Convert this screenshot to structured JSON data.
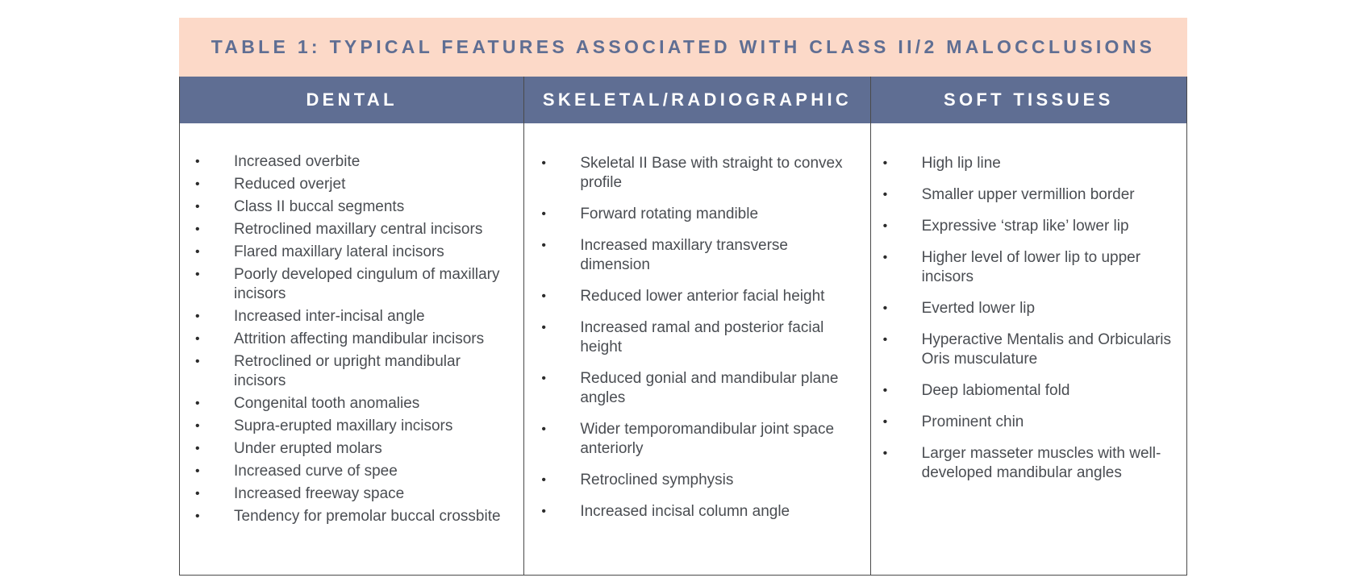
{
  "table": {
    "title": "TABLE 1: TYPICAL FEATURES ASSOCIATED WITH CLASS II/2 MALOCCLUSIONS",
    "columns": [
      {
        "header": "DENTAL",
        "items": [
          "Increased overbite",
          "Reduced overjet",
          "Class II buccal segments",
          "Retroclined maxillary central incisors",
          "Flared maxillary lateral incisors",
          "Poorly developed cingulum of maxillary incisors",
          "Increased inter-incisal angle",
          "Attrition affecting mandibular incisors",
          "Retroclined or upright mandibular incisors",
          "Congenital tooth anomalies",
          "Supra-erupted maxillary incisors",
          "Under erupted molars",
          "Increased curve of spee",
          "Increased freeway space",
          "Tendency for premolar buccal crossbite"
        ]
      },
      {
        "header": "SKELETAL/RADIOGRAPHIC",
        "items": [
          "Skeletal II Base with straight to convex profile",
          "Forward rotating mandible",
          "Increased maxillary transverse dimension",
          "Reduced lower anterior facial height",
          "Increased ramal and posterior facial height",
          "Reduced gonial and mandibular plane angles",
          "Wider temporomandibular joint space anteriorly",
          "Retroclined symphysis",
          "Increased incisal column angle"
        ]
      },
      {
        "header": "SOFT TISSUES",
        "items": [
          "High lip line",
          "Smaller upper vermillion border",
          "Expressive ‘strap like’ lower lip",
          "Higher level of lower lip to upper incisors",
          "Everted lower lip",
          "Hyperactive Mentalis and Orbicularis Oris musculature",
          "Deep labiomental fold",
          "Prominent chin",
          "Larger masseter muscles with well-developed mandibular angles"
        ]
      }
    ]
  },
  "colors": {
    "title_background": "#fcd9c8",
    "header_background": "#5f6e93",
    "title_text": "#5f6e93",
    "body_text": "#4a4d52"
  }
}
